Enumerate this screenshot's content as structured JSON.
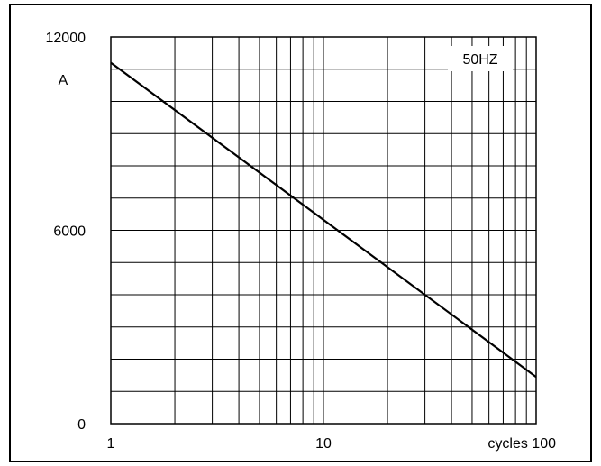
{
  "chart_data": {
    "type": "line",
    "title": "",
    "annotation": "50HZ",
    "xscale": "log",
    "xlim": [
      1,
      100
    ],
    "ylim": [
      0,
      12000
    ],
    "x_ticks": [
      1,
      10,
      100
    ],
    "x_tick_labels": [
      "1",
      "10",
      "cycles 100"
    ],
    "y_ticks": [
      0,
      6000,
      12000
    ],
    "y_tick_labels": [
      "0",
      "6000",
      "12000"
    ],
    "ylabel": "A",
    "grid": true,
    "series": [
      {
        "x": [
          1,
          100
        ],
        "y": [
          11200,
          1450
        ]
      }
    ],
    "colors": {
      "line": "#000000",
      "grid": "#000000"
    }
  }
}
